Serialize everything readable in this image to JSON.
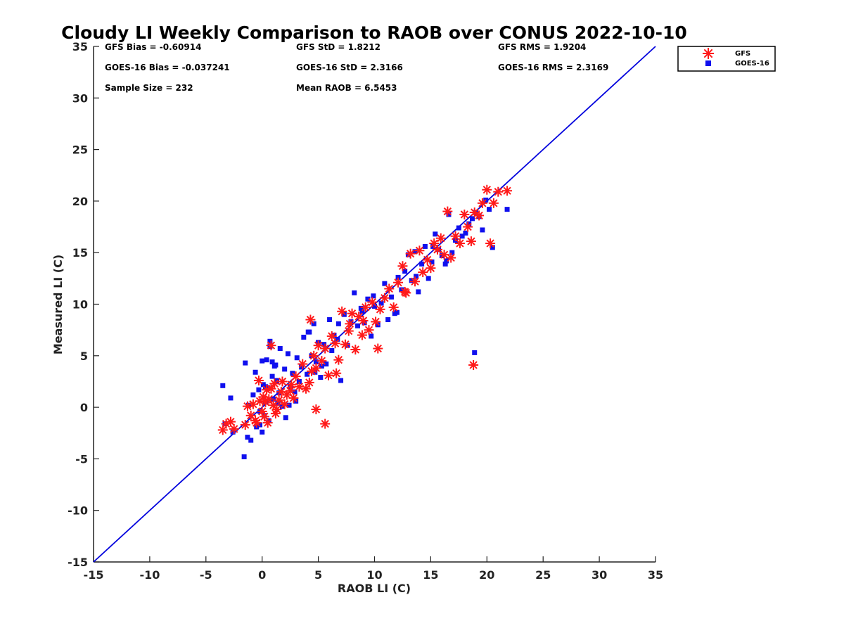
{
  "chart_data": {
    "type": "scatter",
    "title": "Cloudy LI Weekly Comparison to RAOB over CONUS 2022-10-10",
    "xlabel": "RAOB LI (C)",
    "ylabel": "Measured LI (C)",
    "xlim": [
      -15,
      35
    ],
    "ylim": [
      -15,
      35
    ],
    "xticks": [
      "-15",
      "-10",
      "-5",
      "0",
      "5",
      "10",
      "15",
      "20",
      "25",
      "30",
      "35"
    ],
    "yticks": [
      "-15",
      "-10",
      "-5",
      "0",
      "5",
      "10",
      "15",
      "20",
      "25",
      "30",
      "35"
    ],
    "grid": false,
    "legend_position": "outside top-right",
    "reference_line": {
      "x": [
        -15,
        35
      ],
      "y": [
        -15,
        35
      ],
      "color": "#0000dd"
    },
    "stats": [
      "GFS Bias = -0.60914",
      "GFS StD = 1.8212",
      "GFS RMS = 1.9204",
      "GOES-16 Bias = -0.037241",
      "GOES-16 StD = 2.3166",
      "GOES-16 RMS = 2.3169",
      "Sample Size = 232",
      "Mean RAOB = 6.5453"
    ],
    "series": [
      {
        "name": "GFS",
        "marker": "asterisk",
        "color": "#ff1a1a",
        "x": [
          -3.5,
          -3.2,
          -2.8,
          -2.5,
          -1.5,
          -1.3,
          -1.0,
          -0.8,
          -0.6,
          -0.5,
          -0.3,
          -0.2,
          0.0,
          0.1,
          0.2,
          0.3,
          0.5,
          0.6,
          0.8,
          1.0,
          1.1,
          1.3,
          1.5,
          1.7,
          2.0,
          2.2,
          2.5,
          2.8,
          3.0,
          3.3,
          3.6,
          3.9,
          4.2,
          4.4,
          4.6,
          4.8,
          5.0,
          5.3,
          5.6,
          5.9,
          6.2,
          6.5,
          6.8,
          7.1,
          7.4,
          7.7,
          8.0,
          8.3,
          8.6,
          8.9,
          9.2,
          9.5,
          9.8,
          10.1,
          10.5,
          10.9,
          11.3,
          11.7,
          12.1,
          12.5,
          12.8,
          13.2,
          13.6,
          14.0,
          14.3,
          14.7,
          15.0,
          15.3,
          15.6,
          15.9,
          16.2,
          16.5,
          16.8,
          17.2,
          17.6,
          18.0,
          18.3,
          18.6,
          18.9,
          19.3,
          19.6,
          20.0,
          20.3,
          20.6,
          21.0,
          21.8,
          0.8,
          4.3,
          1.2,
          5.6,
          4.8,
          18.8,
          0.4,
          1.8,
          2.6,
          6.6,
          9.0,
          12.7,
          7.8,
          10.3
        ],
        "y": [
          -2.2,
          -1.6,
          -1.4,
          -2.1,
          -1.7,
          0.1,
          -0.8,
          0.3,
          -1.3,
          -1.5,
          2.6,
          0.6,
          -0.4,
          1.0,
          -0.9,
          0.5,
          -1.5,
          0.8,
          1.8,
          0.2,
          2.3,
          -0.2,
          0.7,
          1.5,
          0.3,
          1.2,
          1.6,
          0.9,
          3.0,
          2.0,
          4.2,
          1.8,
          2.4,
          3.5,
          5.0,
          3.8,
          6.0,
          4.5,
          5.7,
          3.1,
          6.9,
          6.2,
          4.6,
          9.3,
          6.1,
          7.4,
          9.1,
          5.6,
          8.8,
          7.0,
          9.7,
          7.5,
          10.2,
          8.3,
          9.5,
          10.6,
          11.5,
          9.7,
          12.1,
          13.7,
          11.1,
          14.9,
          12.2,
          15.2,
          13.1,
          14.3,
          13.5,
          15.9,
          15.3,
          16.4,
          14.8,
          19.0,
          14.5,
          16.6,
          15.9,
          18.7,
          17.5,
          16.1,
          18.9,
          18.6,
          19.8,
          21.1,
          15.9,
          19.8,
          20.9,
          21.0,
          6.0,
          8.5,
          -0.6,
          -1.6,
          -0.2,
          4.1,
          1.7,
          2.5,
          2.2,
          3.3,
          8.4,
          11.2,
          8.1,
          5.7
        ]
      },
      {
        "name": "GOES-16",
        "marker": "square",
        "color": "#1010ee",
        "x": [
          -3.5,
          -3.3,
          -2.8,
          -2.6,
          -1.6,
          -1.5,
          -1.3,
          -1.2,
          -1.0,
          -0.8,
          -0.6,
          -0.5,
          -0.3,
          -0.2,
          0.0,
          0.1,
          0.2,
          0.3,
          0.4,
          0.5,
          0.6,
          0.7,
          0.9,
          1.0,
          1.2,
          1.3,
          1.5,
          1.6,
          1.8,
          2.0,
          2.1,
          2.3,
          2.5,
          2.7,
          2.9,
          3.1,
          3.3,
          3.5,
          3.7,
          4.0,
          4.2,
          4.4,
          4.6,
          4.8,
          5.0,
          5.2,
          5.5,
          5.7,
          6.0,
          6.2,
          6.4,
          6.7,
          7.0,
          7.3,
          7.6,
          7.9,
          8.2,
          8.5,
          8.8,
          9.1,
          9.4,
          9.7,
          10.0,
          10.3,
          10.6,
          10.9,
          11.2,
          11.5,
          11.8,
          12.1,
          12.4,
          12.7,
          13.0,
          13.3,
          13.6,
          13.9,
          14.2,
          14.5,
          14.8,
          15.1,
          15.4,
          15.7,
          16.0,
          16.3,
          16.6,
          16.9,
          17.2,
          17.5,
          17.8,
          18.1,
          18.4,
          18.7,
          19.0,
          19.3,
          19.6,
          19.9,
          20.2,
          20.5,
          21.8,
          0.3,
          0.9,
          -0.2,
          1.4,
          2.4,
          4.1,
          5.3,
          6.8,
          8.9,
          9.9,
          12.0,
          13.7,
          15.2,
          16.4,
          18.9,
          0.7,
          1.1,
          3.0,
          4.7,
          0.0
        ],
        "y": [
          2.1,
          -1.6,
          0.9,
          -2.4,
          -4.8,
          4.3,
          -2.9,
          0.2,
          -3.2,
          1.2,
          3.4,
          -1.9,
          1.7,
          -0.4,
          4.5,
          2.2,
          -0.8,
          0.5,
          4.6,
          1.9,
          -1.3,
          6.4,
          3.0,
          0.8,
          4.1,
          2.6,
          1.4,
          5.7,
          0.1,
          3.7,
          -1.0,
          5.2,
          2.0,
          3.3,
          1.5,
          4.8,
          2.5,
          3.9,
          6.8,
          3.2,
          7.3,
          5.0,
          8.1,
          4.4,
          6.3,
          2.9,
          6.1,
          4.2,
          8.5,
          5.5,
          7.0,
          6.6,
          2.6,
          9.0,
          6.0,
          8.3,
          11.1,
          7.9,
          9.6,
          8.2,
          10.5,
          6.9,
          9.8,
          8.0,
          10.1,
          12.0,
          8.5,
          10.7,
          9.1,
          12.6,
          11.4,
          13.2,
          14.8,
          12.3,
          15.1,
          11.2,
          13.9,
          15.6,
          12.5,
          14.1,
          16.8,
          15.3,
          14.7,
          13.9,
          18.7,
          15.0,
          16.2,
          17.4,
          16.6,
          16.9,
          17.8,
          18.3,
          18.9,
          18.5,
          17.2,
          20.1,
          19.2,
          15.5,
          19.2,
          2.0,
          4.4,
          -1.7,
          0.4,
          0.2,
          7.3,
          4.0,
          8.1,
          9.3,
          10.8,
          9.2,
          12.7,
          15.6,
          14.2,
          5.3,
          5.9,
          4.0,
          0.6,
          3.4,
          -2.4
        ]
      }
    ]
  }
}
